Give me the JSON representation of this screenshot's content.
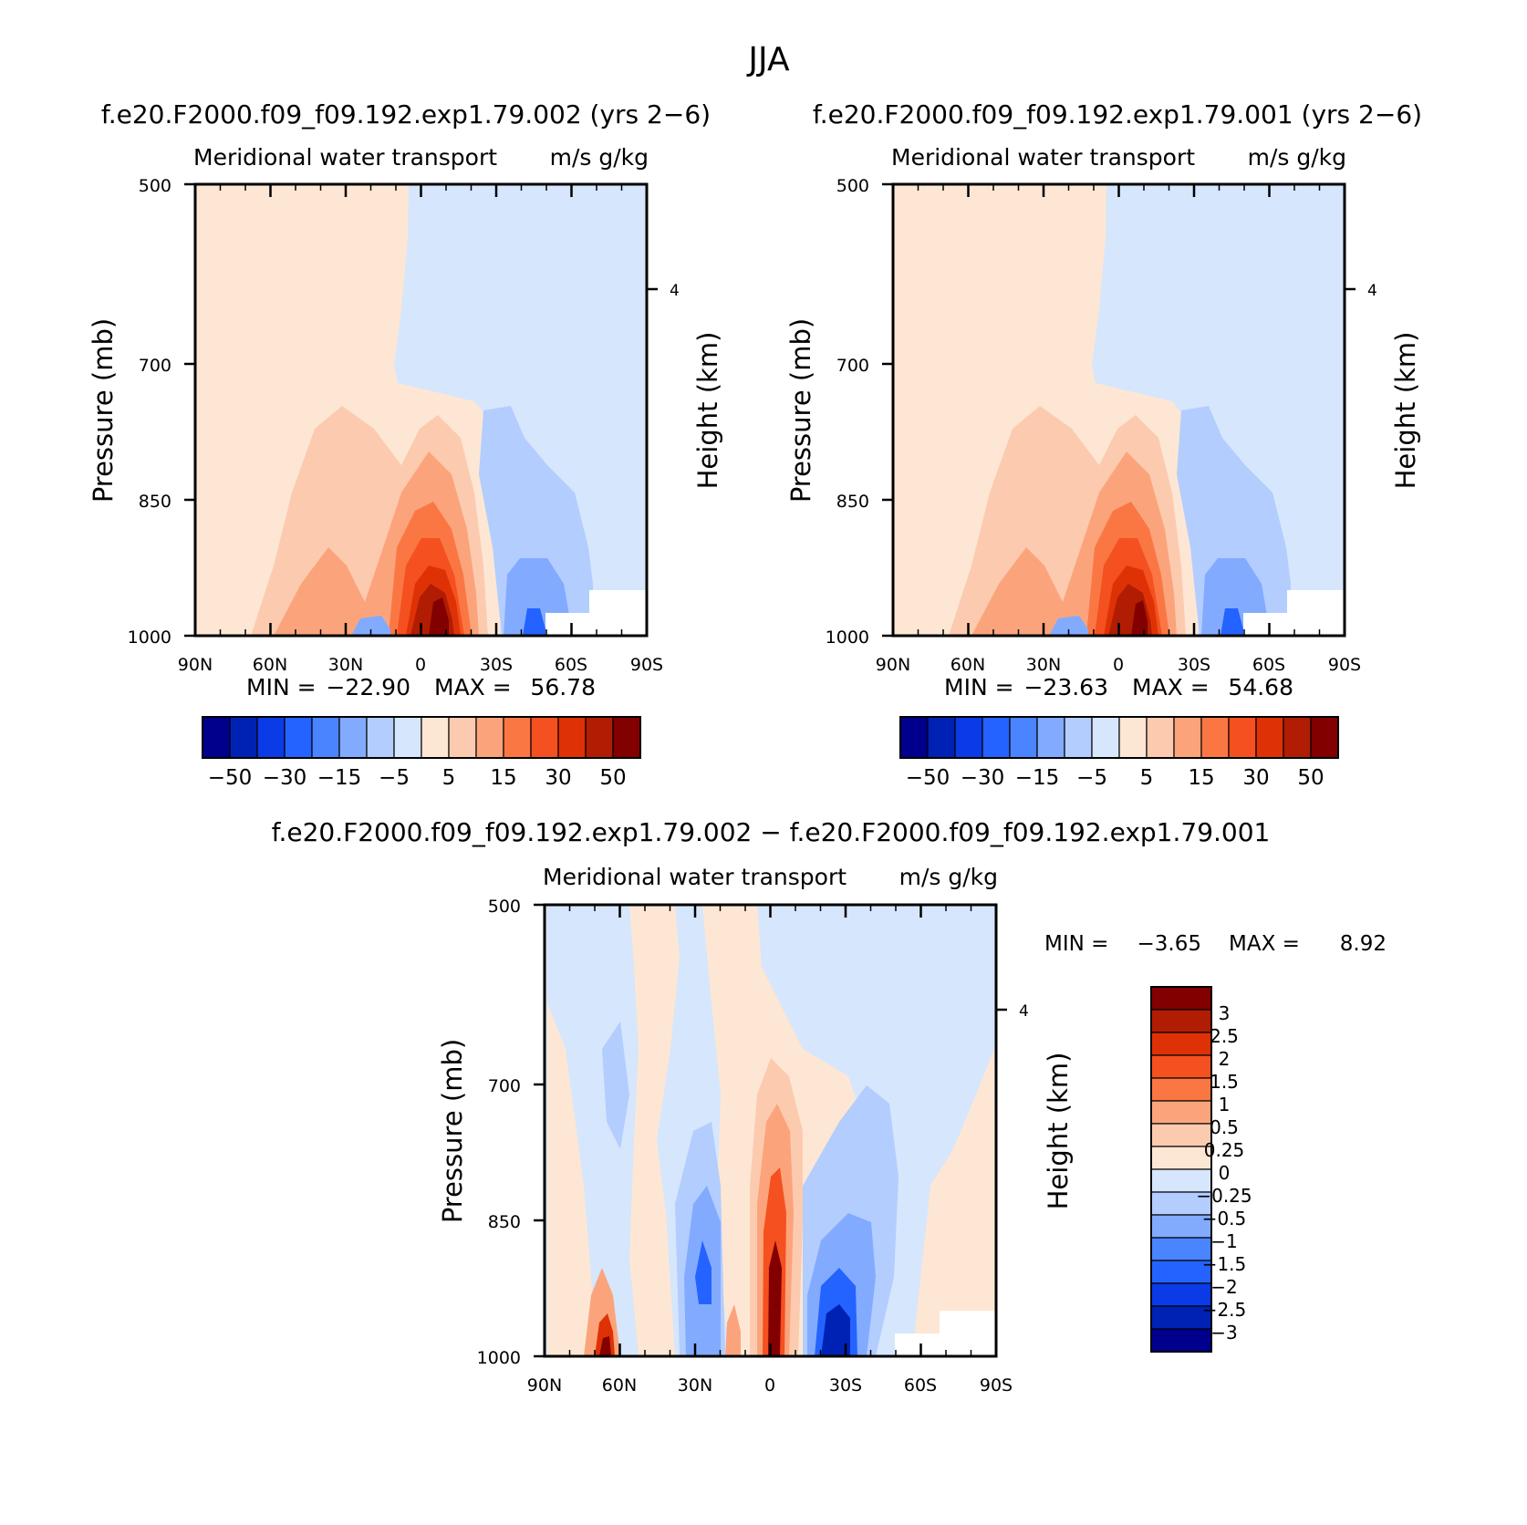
{
  "figure": {
    "title": "JJA"
  },
  "chart_data": [
    {
      "type": "heatmap",
      "panel": "top-left",
      "title": "f.e20.F2000.f09_f09.192.exp1.79.002 (yrs 2−6)",
      "subtitle_left": "Meridional water transport",
      "subtitle_right": "m/s g/kg",
      "ylabel": "Pressure (mb)",
      "ylabel_right": "Height (km)",
      "x_ticks": [
        "90N",
        "60N",
        "30N",
        "0",
        "30S",
        "60S",
        "90S"
      ],
      "y_ticks": [
        "500",
        "700",
        "850",
        "1000"
      ],
      "right_ticks": [
        "4"
      ],
      "stats": {
        "min_label": "MIN =",
        "min": "−22.90",
        "max_label": "MAX =",
        "max": "56.78"
      },
      "colorbar": {
        "orientation": "horizontal",
        "tick_labels": [
          "−50",
          "−30",
          "−15",
          "−5",
          "5",
          "15",
          "30",
          "50"
        ]
      }
    },
    {
      "type": "heatmap",
      "panel": "top-right",
      "title": "f.e20.F2000.f09_f09.192.exp1.79.001 (yrs 2−6)",
      "subtitle_left": "Meridional water transport",
      "subtitle_right": "m/s g/kg",
      "ylabel": "Pressure (mb)",
      "ylabel_right": "Height (km)",
      "x_ticks": [
        "90N",
        "60N",
        "30N",
        "0",
        "30S",
        "60S",
        "90S"
      ],
      "y_ticks": [
        "500",
        "700",
        "850",
        "1000"
      ],
      "right_ticks": [
        "4"
      ],
      "stats": {
        "min_label": "MIN =",
        "min": "−23.63",
        "max_label": "MAX =",
        "max": "54.68"
      },
      "colorbar": {
        "orientation": "horizontal",
        "tick_labels": [
          "−50",
          "−30",
          "−15",
          "−5",
          "5",
          "15",
          "30",
          "50"
        ]
      }
    },
    {
      "type": "heatmap",
      "panel": "bottom",
      "title": "f.e20.F2000.f09_f09.192.exp1.79.002 − f.e20.F2000.f09_f09.192.exp1.79.001",
      "subtitle_left": "Meridional water transport",
      "subtitle_right": "m/s g/kg",
      "ylabel": "Pressure (mb)",
      "ylabel_right": "Height (km)",
      "x_ticks": [
        "90N",
        "60N",
        "30N",
        "0",
        "30S",
        "60S",
        "90S"
      ],
      "y_ticks": [
        "500",
        "700",
        "850",
        "1000"
      ],
      "right_ticks": [
        "4"
      ],
      "stats": {
        "min_label": "MIN =",
        "min": "−3.65",
        "max_label": "MAX =",
        "max": "8.92"
      },
      "colorbar": {
        "orientation": "vertical",
        "tick_labels": [
          "3",
          "2.5",
          "2",
          "1.5",
          "1",
          "0.5",
          "0.25",
          "0",
          "−0.25",
          "−0.5",
          "−1",
          "−1.5",
          "−2",
          "−2.5",
          "−3"
        ]
      }
    }
  ],
  "palette": [
    "#00008c",
    "#0022b4",
    "#0a3be6",
    "#2463ff",
    "#4a84ff",
    "#82abff",
    "#b3cdff",
    "#d6e6fc",
    "#fde7d4",
    "#fccbaf",
    "#fba47c",
    "#fa7744",
    "#f5501f",
    "#de3206",
    "#b11d02",
    "#820000"
  ]
}
